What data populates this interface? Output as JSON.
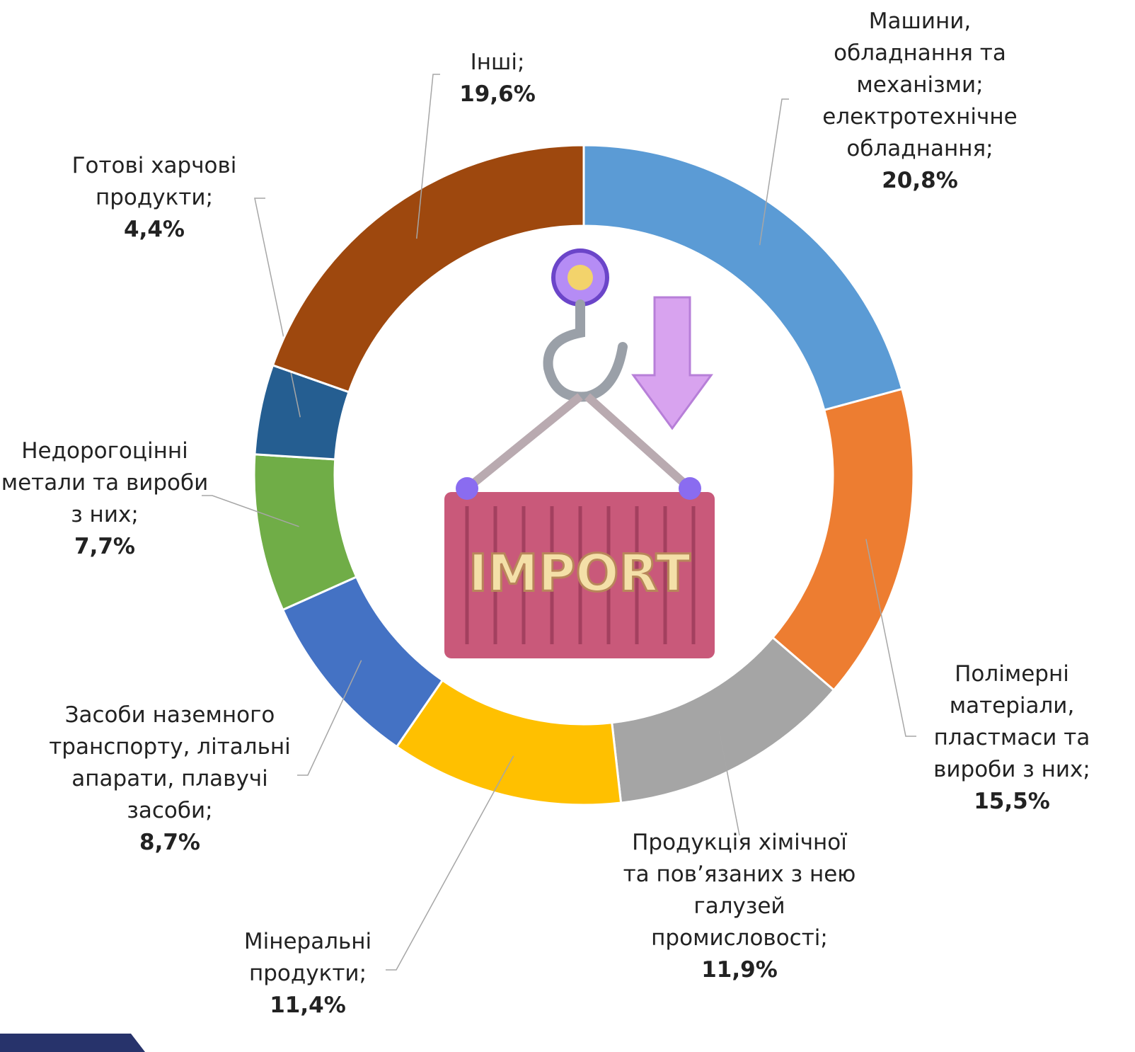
{
  "chart_data": {
    "type": "donut",
    "categories": [
      "Машини, обладнання та механізми; електротехнічне обладнання;",
      "Полімерні матеріали, пластмаси та вироби з них;",
      "Продукція хімічної та пов’язаних з нею галузей промисловості;",
      "Мінеральні продукти;",
      "Засоби наземного транспорту, літальні апарати, плавучі засоби;",
      "Недорогоцінні метали та вироби з них;",
      "Готові харчові продукти;",
      "Інші;"
    ],
    "values": [
      20.8,
      15.5,
      11.9,
      11.4,
      8.7,
      7.7,
      4.4,
      19.6
    ],
    "value_labels": [
      "20,8%",
      "15,5%",
      "11,9%",
      "11,4%",
      "8,7%",
      "7,7%",
      "4,4%",
      "19,6%"
    ],
    "colors": [
      "#5b9bd5",
      "#ed7d31",
      "#a5a5a5",
      "#ffc000",
      "#4472c4",
      "#70ad47",
      "#255e91",
      "#9e480e"
    ],
    "center_label": "IMPORT"
  }
}
